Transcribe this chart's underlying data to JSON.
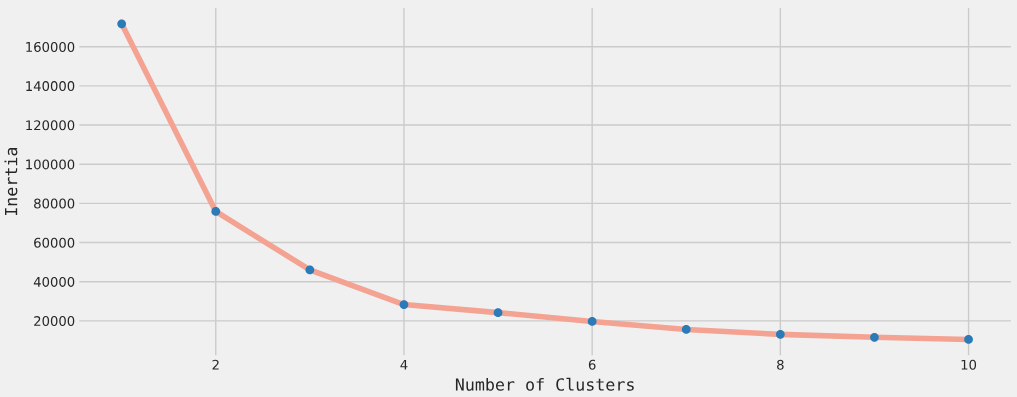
{
  "chart_data": {
    "type": "line",
    "xlabel": "Number of Clusters",
    "ylabel": "Inertia",
    "x": [
      1,
      2,
      3,
      4,
      5,
      6,
      7,
      8,
      9,
      10
    ],
    "series": [
      {
        "color": "#f4a392",
        "values": [
          171700,
          75900,
          46000,
          28300,
          24200,
          19700,
          15600,
          13100,
          11600,
          10500
        ]
      },
      {
        "type": "scatter",
        "color": "#2b7bb9",
        "values": [
          171700,
          75900,
          46000,
          28300,
          24200,
          19700,
          15600,
          13100,
          11600,
          10500
        ]
      }
    ],
    "xlim": [
      0.55,
      10.45
    ],
    "xticks": [
      2,
      4,
      6,
      8,
      10
    ],
    "ylim": [
      2400,
      179800
    ],
    "yticks": [
      20000,
      40000,
      60000,
      80000,
      100000,
      120000,
      140000,
      160000
    ],
    "grid": true
  }
}
